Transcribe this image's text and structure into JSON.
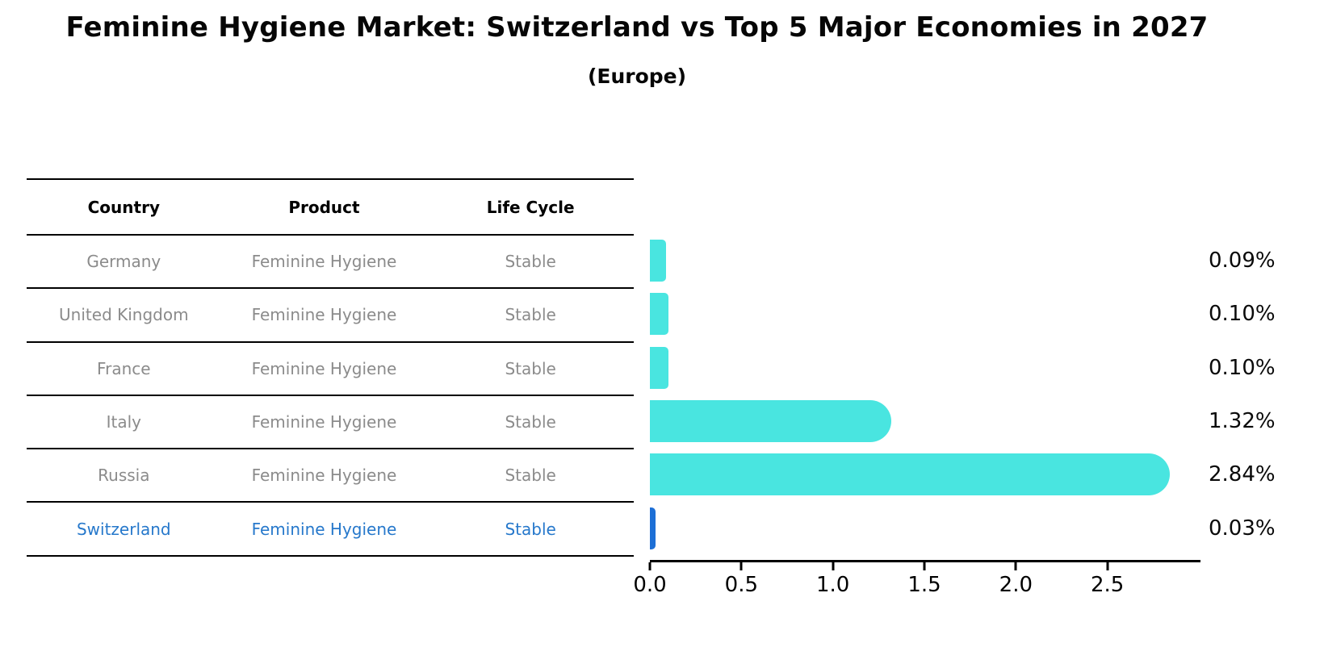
{
  "title": "Feminine Hygiene Market: Switzerland vs Top 5 Major Economies in 2027",
  "subtitle": "(Europe)",
  "table": {
    "headers": [
      "Country",
      "Product",
      "Life Cycle"
    ],
    "rows": [
      {
        "country": "Germany",
        "product": "Feminine Hygiene",
        "life_cycle": "Stable",
        "highlighted": false
      },
      {
        "country": "United Kingdom",
        "product": "Feminine Hygiene",
        "life_cycle": "Stable",
        "highlighted": false
      },
      {
        "country": "France",
        "product": "Feminine Hygiene",
        "life_cycle": "Stable",
        "highlighted": false
      },
      {
        "country": "Italy",
        "product": "Feminine Hygiene",
        "life_cycle": "Stable",
        "highlighted": false
      },
      {
        "country": "Russia",
        "product": "Feminine Hygiene",
        "life_cycle": "Stable",
        "highlighted": false
      },
      {
        "country": "Switzerland",
        "product": "Feminine Hygiene",
        "life_cycle": "Stable",
        "highlighted": true
      }
    ]
  },
  "chart_data": {
    "type": "bar",
    "orientation": "horizontal",
    "title": "Feminine Hygiene Market: Switzerland vs Top 5 Major Economies in 2027",
    "subtitle": "(Europe)",
    "categories": [
      "Germany",
      "United Kingdom",
      "France",
      "Italy",
      "Russia",
      "Switzerland"
    ],
    "values": [
      0.09,
      0.1,
      0.1,
      1.32,
      2.84,
      0.03
    ],
    "value_labels": [
      "0.09%",
      "0.10%",
      "0.10%",
      "1.32%",
      "2.84%",
      "0.03%"
    ],
    "xlabel": "",
    "ylabel": "",
    "xlim": [
      0,
      3.0
    ],
    "xticks": [
      0,
      0.5,
      1.0,
      1.5,
      2.0,
      2.5
    ],
    "xtick_labels": [
      "0.0",
      "0.5",
      "1.0",
      "1.5",
      "2.0",
      "2.5"
    ],
    "grid": false,
    "legend": false,
    "bar_color": "#49e5e0",
    "highlight_color": "#1d6fd6",
    "highlight_category": "Switzerland"
  },
  "colors": {
    "table_text": "#8b8b8b",
    "highlight_text": "#2678cb",
    "heading_text": "#000000",
    "axis_color": "#000000"
  }
}
